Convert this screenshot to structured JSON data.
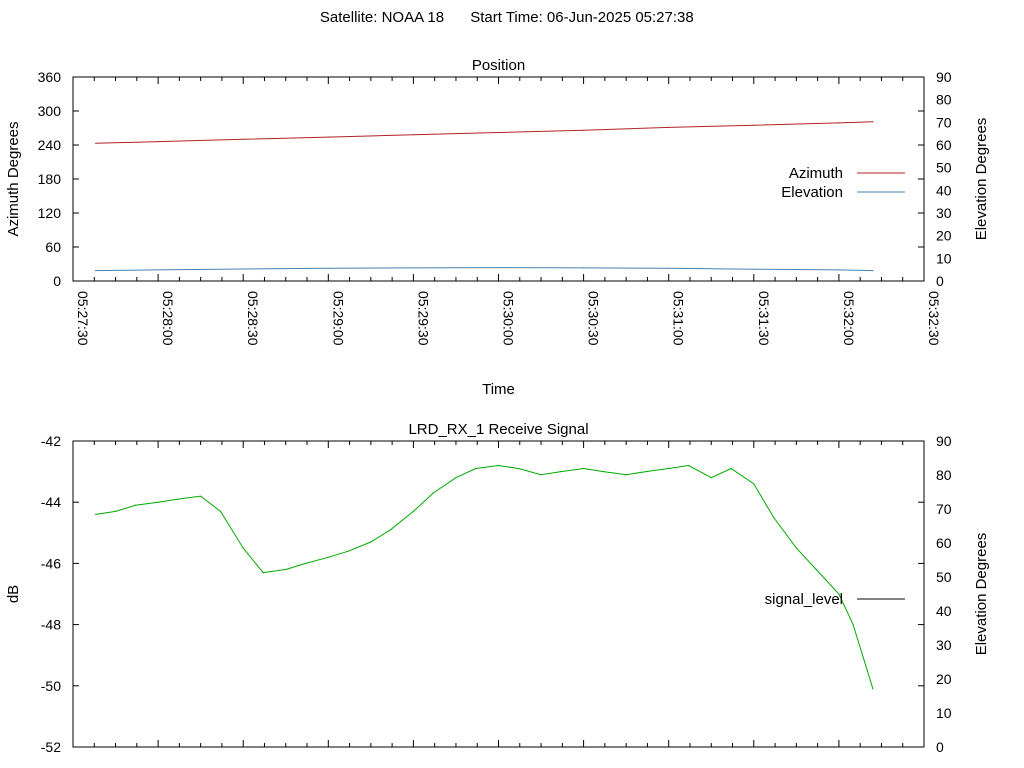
{
  "header": {
    "satellite_label": "Satellite: NOAA 18",
    "start_time_label": "Start Time: 06-Jun-2025 05:27:38"
  },
  "chart_data": [
    {
      "type": "line",
      "title": "Position",
      "xlabel": "Time",
      "ylabel": "Azimuth Degrees",
      "y2label": "Elevation Degrees",
      "x_ticks": [
        "05:27:30",
        "05:28:00",
        "05:28:30",
        "05:29:00",
        "05:29:30",
        "05:30:00",
        "05:30:30",
        "05:31:00",
        "05:31:30",
        "05:32:00",
        "05:32:30"
      ],
      "xlim": [
        "05:27:30",
        "05:32:30"
      ],
      "ylim": [
        0,
        360
      ],
      "y_ticks": [
        0,
        60,
        120,
        180,
        240,
        300,
        360
      ],
      "y2lim": [
        0,
        90
      ],
      "y2_ticks": [
        0,
        10,
        20,
        30,
        40,
        50,
        60,
        70,
        80,
        90
      ],
      "legend_position": "right",
      "series": [
        {
          "name": "Azimuth",
          "axis": "y",
          "color": "#b22222",
          "x": [
            "05:27:38",
            "05:28:00",
            "05:28:30",
            "05:29:00",
            "05:29:30",
            "05:30:00",
            "05:30:30",
            "05:31:00",
            "05:31:30",
            "05:32:00",
            "05:32:12"
          ],
          "values": [
            243,
            246,
            250,
            254,
            258,
            262,
            266,
            271,
            275,
            279,
            281
          ]
        },
        {
          "name": "Elevation",
          "axis": "y2",
          "color": "#4682b4",
          "x": [
            "05:27:38",
            "05:28:00",
            "05:28:30",
            "05:29:00",
            "05:29:30",
            "05:30:00",
            "05:30:30",
            "05:31:00",
            "05:31:30",
            "05:32:00",
            "05:32:12"
          ],
          "values": [
            4.6,
            4.9,
            5.3,
            5.6,
            5.8,
            5.9,
            5.8,
            5.6,
            5.2,
            4.9,
            4.6
          ]
        }
      ]
    },
    {
      "type": "line",
      "title": "LRD_RX_1 Receive Signal",
      "ylabel": "dB",
      "y2label": "Elevation Degrees",
      "xlim": [
        "05:27:30",
        "05:32:30"
      ],
      "ylim": [
        -52,
        -42
      ],
      "y_ticks": [
        -52,
        -50,
        -48,
        -46,
        -44,
        -42
      ],
      "y2lim": [
        0,
        90
      ],
      "y2_ticks": [
        0,
        10,
        20,
        30,
        40,
        50,
        60,
        70,
        80,
        90
      ],
      "legend_position": "right",
      "series": [
        {
          "name": "signal_level",
          "axis": "y",
          "color": "#00aa00",
          "x": [
            "05:27:38",
            "05:27:45",
            "05:27:52",
            "05:28:00",
            "05:28:07",
            "05:28:15",
            "05:28:22",
            "05:28:30",
            "05:28:37",
            "05:28:45",
            "05:28:52",
            "05:29:00",
            "05:29:07",
            "05:29:15",
            "05:29:22",
            "05:29:30",
            "05:29:37",
            "05:29:45",
            "05:29:52",
            "05:30:00",
            "05:30:07",
            "05:30:15",
            "05:30:22",
            "05:30:30",
            "05:30:37",
            "05:30:45",
            "05:30:52",
            "05:31:00",
            "05:31:07",
            "05:31:15",
            "05:31:22",
            "05:31:30",
            "05:31:37",
            "05:31:45",
            "05:31:52",
            "05:32:00",
            "05:32:05",
            "05:32:10",
            "05:32:12"
          ],
          "values": [
            -44.4,
            -44.3,
            -44.1,
            -44.0,
            -43.9,
            -43.8,
            -44.3,
            -45.5,
            -46.3,
            -46.2,
            -46.0,
            -45.8,
            -45.6,
            -45.3,
            -44.9,
            -44.3,
            -43.7,
            -43.2,
            -42.9,
            -42.8,
            -42.9,
            -43.1,
            -43.0,
            -42.9,
            -43.0,
            -43.1,
            -43.0,
            -42.9,
            -42.8,
            -43.2,
            -42.9,
            -43.4,
            -44.5,
            -45.5,
            -46.2,
            -47.0,
            -48.0,
            -49.5,
            -50.1
          ]
        }
      ]
    }
  ]
}
